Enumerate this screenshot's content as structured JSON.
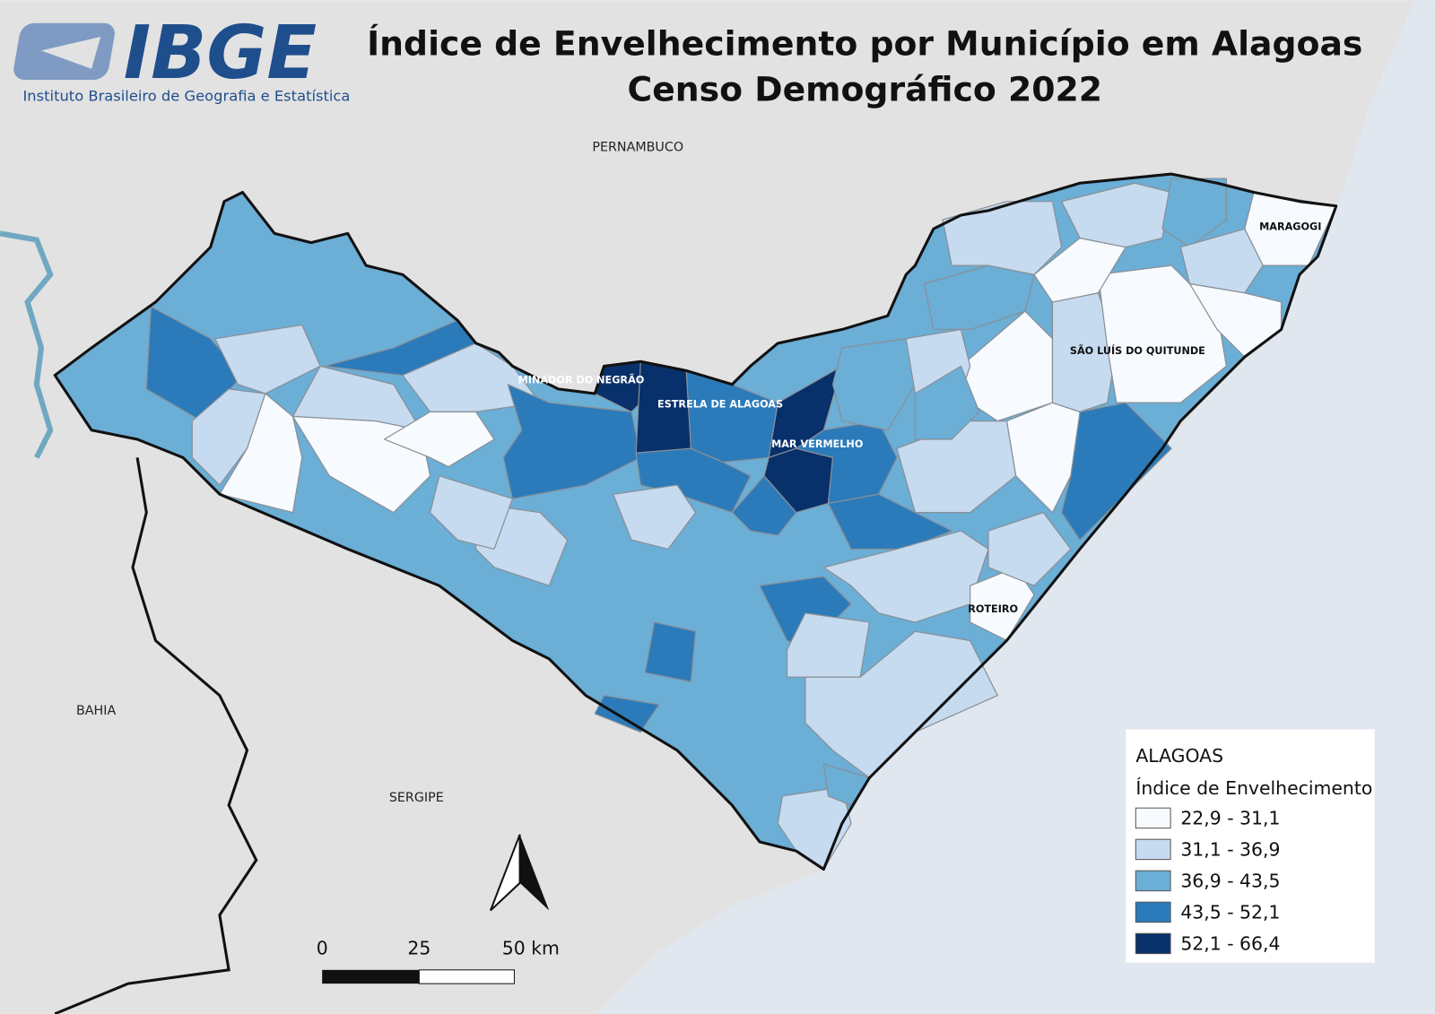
{
  "header": {
    "logo": "IBGE",
    "logo_subtitle": "Instituto Brasileiro de Geografia e Estatística",
    "title": "Índice de Envelhecimento por Município em Alagoas",
    "subtitle": "Censo Demográfico 2022"
  },
  "regions": [
    "PERNAMBUCO",
    "BAHIA",
    "SERGIPE"
  ],
  "municipalities": [
    "MINADOR DO NEGRÃO",
    "ESTRELA DE ALAGOAS",
    "MAR VERMELHO",
    "MARAGOGI",
    "SÃO LUÍS DO QUITUNDE",
    "ROTEIRO"
  ],
  "legend": {
    "title": "ALAGOAS",
    "subtitle": "Índice de Envelhecimento",
    "items": [
      {
        "label": "22,9 - 31,1",
        "color": "#f7fbff"
      },
      {
        "label": "31,1 - 36,9",
        "color": "#c6dbef"
      },
      {
        "label": "36,9 - 43,5",
        "color": "#6baed6"
      },
      {
        "label": "43,5 - 52,1",
        "color": "#2b7bba"
      },
      {
        "label": "52,1 - 66,4",
        "color": "#08306b"
      }
    ]
  },
  "scale_bar": {
    "labels": [
      "0",
      "25",
      "50 km"
    ]
  }
}
